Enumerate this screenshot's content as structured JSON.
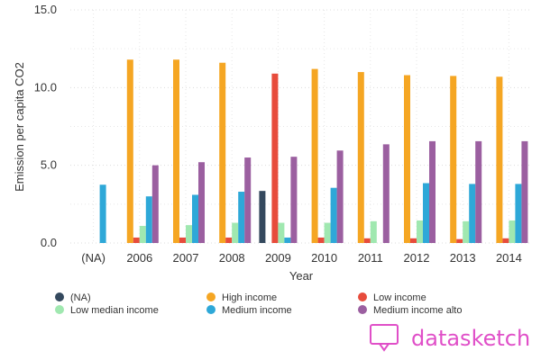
{
  "chart_data": {
    "type": "bar",
    "title": "",
    "xlabel": "Year",
    "ylabel": "Emission per capita CO2",
    "ylim": [
      0,
      15
    ],
    "yticks": [
      0,
      5,
      10,
      15
    ],
    "ytick_labels": [
      "0.0",
      "5.0",
      "10.0",
      "15.0"
    ],
    "grid": true,
    "legend_position": "bottom",
    "categories": [
      "(NA)",
      "2006",
      "2007",
      "2008",
      "2009",
      "2010",
      "2011",
      "2012",
      "2013",
      "2014"
    ],
    "series": [
      {
        "name": "(NA)",
        "color": "#34495e",
        "values": [
          null,
          null,
          null,
          null,
          3.35,
          null,
          null,
          null,
          null,
          null
        ]
      },
      {
        "name": "High income",
        "color": "#f5a623",
        "values": [
          null,
          11.8,
          11.8,
          11.6,
          null,
          11.2,
          11.0,
          10.8,
          10.75,
          10.7
        ]
      },
      {
        "name": "Low income",
        "color": "#e74c3c",
        "values": [
          null,
          0.35,
          0.35,
          0.35,
          10.9,
          0.35,
          0.3,
          0.3,
          0.25,
          0.3
        ]
      },
      {
        "name": "Low median income",
        "color": "#a0e8b0",
        "values": [
          null,
          1.1,
          1.15,
          1.3,
          1.3,
          1.3,
          1.4,
          1.45,
          1.4,
          1.45
        ]
      },
      {
        "name": "Medium income",
        "color": "#2ea8d8",
        "values": [
          3.75,
          3.0,
          3.1,
          3.3,
          0.35,
          3.55,
          null,
          3.85,
          3.8,
          3.8
        ]
      },
      {
        "name": "Medium income alto",
        "color": "#9b5fa0",
        "values": [
          null,
          5.0,
          5.2,
          5.5,
          5.55,
          5.95,
          6.35,
          6.55,
          6.55,
          6.55
        ]
      }
    ]
  },
  "branding": {
    "label": "datasketch",
    "color": "#e04fc8"
  }
}
